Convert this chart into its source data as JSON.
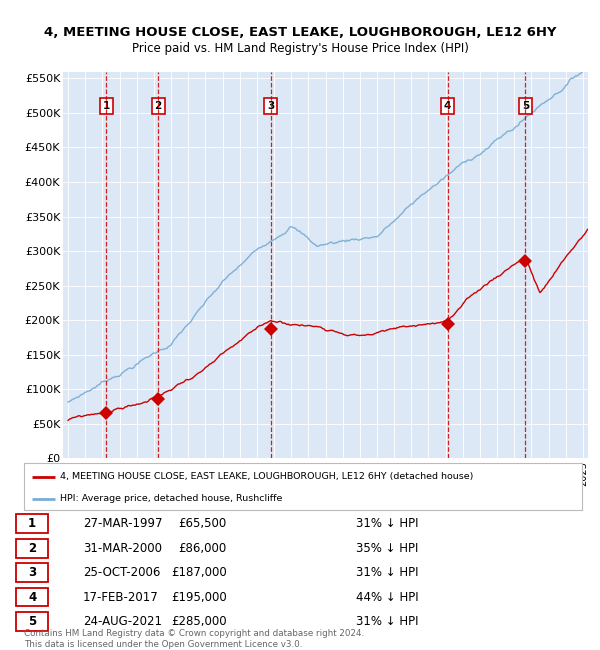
{
  "title1": "4, MEETING HOUSE CLOSE, EAST LEAKE, LOUGHBOROUGH, LE12 6HY",
  "title2": "Price paid vs. HM Land Registry's House Price Index (HPI)",
  "xlim_start": 1994.7,
  "xlim_end": 2025.3,
  "ylim": [
    0,
    560000
  ],
  "yticks": [
    0,
    50000,
    100000,
    150000,
    200000,
    250000,
    300000,
    350000,
    400000,
    450000,
    500000,
    550000
  ],
  "ytick_labels": [
    "£0",
    "£50K",
    "£100K",
    "£150K",
    "£200K",
    "£250K",
    "£300K",
    "£350K",
    "£400K",
    "£450K",
    "£500K",
    "£550K"
  ],
  "plot_bg_color": "#dce8f5",
  "grid_color": "#ffffff",
  "sale_color": "#cc0000",
  "hpi_color": "#7aadd4",
  "vline_color": "#cc0000",
  "number_box_color": "#cc0000",
  "sales": [
    {
      "year": 1997.23,
      "price": 65500,
      "label": "1"
    },
    {
      "year": 2000.25,
      "price": 86000,
      "label": "2"
    },
    {
      "year": 2006.81,
      "price": 187000,
      "label": "3"
    },
    {
      "year": 2017.12,
      "price": 195000,
      "label": "4"
    },
    {
      "year": 2021.65,
      "price": 285000,
      "label": "5"
    }
  ],
  "table_data": [
    [
      "1",
      "27-MAR-1997",
      "£65,500",
      "31% ↓ HPI"
    ],
    [
      "2",
      "31-MAR-2000",
      "£86,000",
      "35% ↓ HPI"
    ],
    [
      "3",
      "25-OCT-2006",
      "£187,000",
      "31% ↓ HPI"
    ],
    [
      "4",
      "17-FEB-2017",
      "£195,000",
      "44% ↓ HPI"
    ],
    [
      "5",
      "24-AUG-2021",
      "£285,000",
      "31% ↓ HPI"
    ]
  ],
  "legend_line1": "4, MEETING HOUSE CLOSE, EAST LEAKE, LOUGHBOROUGH, LE12 6HY (detached house)",
  "legend_line2": "HPI: Average price, detached house, Rushcliffe",
  "footer": "Contains HM Land Registry data © Crown copyright and database right 2024.\nThis data is licensed under the Open Government Licence v3.0."
}
